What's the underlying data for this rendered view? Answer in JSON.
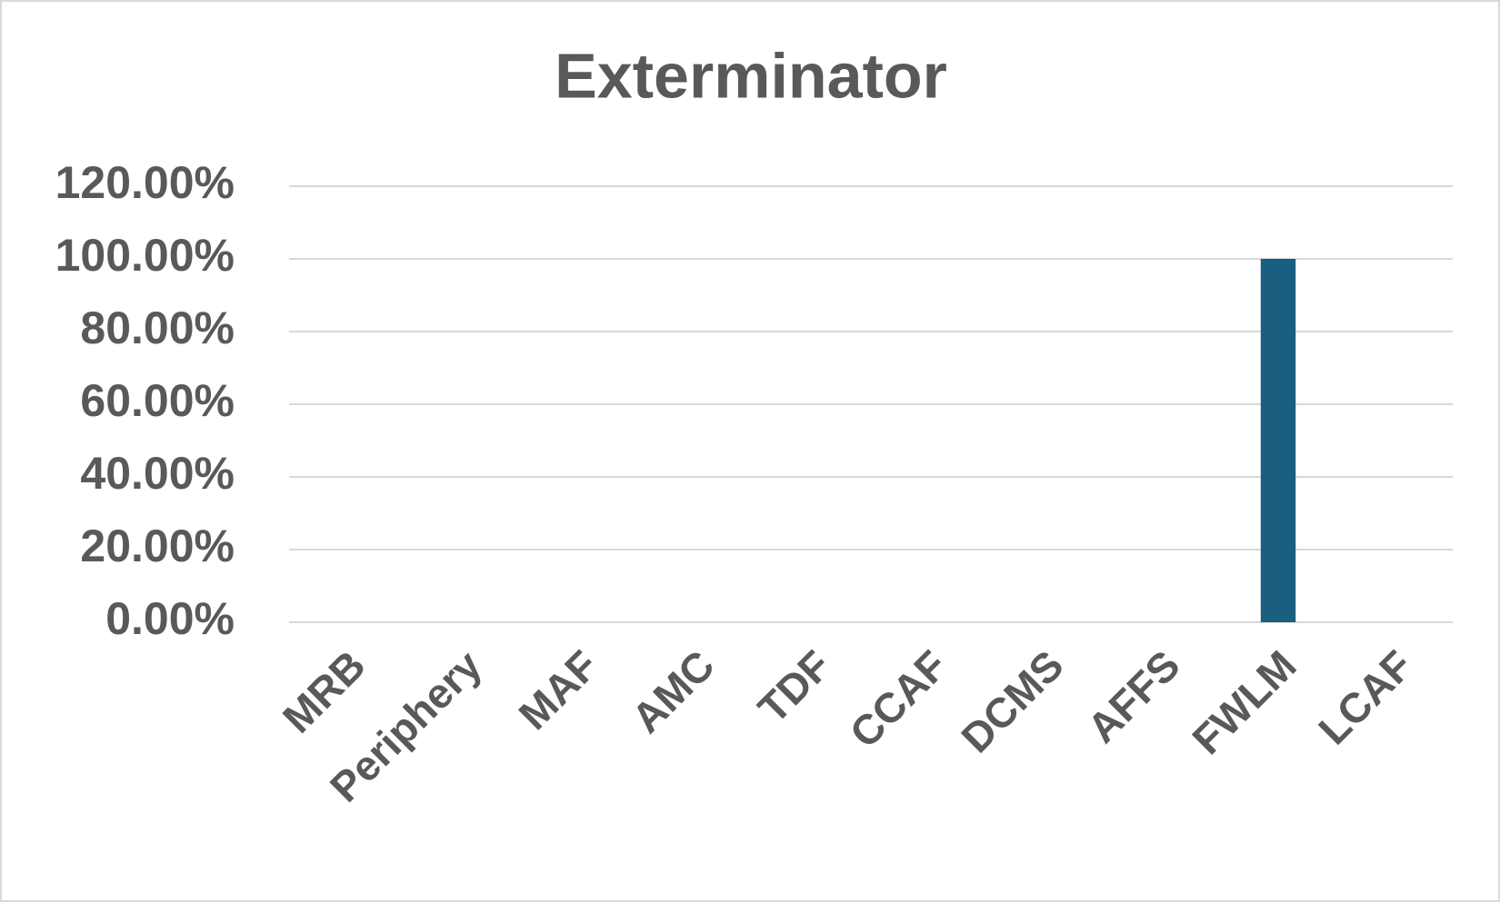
{
  "chart_data": {
    "type": "bar",
    "title": "Exterminator",
    "categories": [
      "MRB",
      "Periphery",
      "MAF",
      "AMC",
      "TDF",
      "CCAF",
      "DCMS",
      "AFFS",
      "FWLM",
      "LCAF"
    ],
    "values": [
      0,
      0,
      0,
      0,
      0,
      0,
      0,
      0,
      100,
      0
    ],
    "color": "#1a5e80",
    "ylim": [
      0,
      120
    ],
    "yticks": [
      {
        "value": 0,
        "label": "0.00%"
      },
      {
        "value": 20,
        "label": "20.00%"
      },
      {
        "value": 40,
        "label": "40.00%"
      },
      {
        "value": 60,
        "label": "60.00%"
      },
      {
        "value": 80,
        "label": "80.00%"
      },
      {
        "value": 100,
        "label": "100.00%"
      },
      {
        "value": 120,
        "label": "120.00%"
      }
    ],
    "grid": true
  }
}
